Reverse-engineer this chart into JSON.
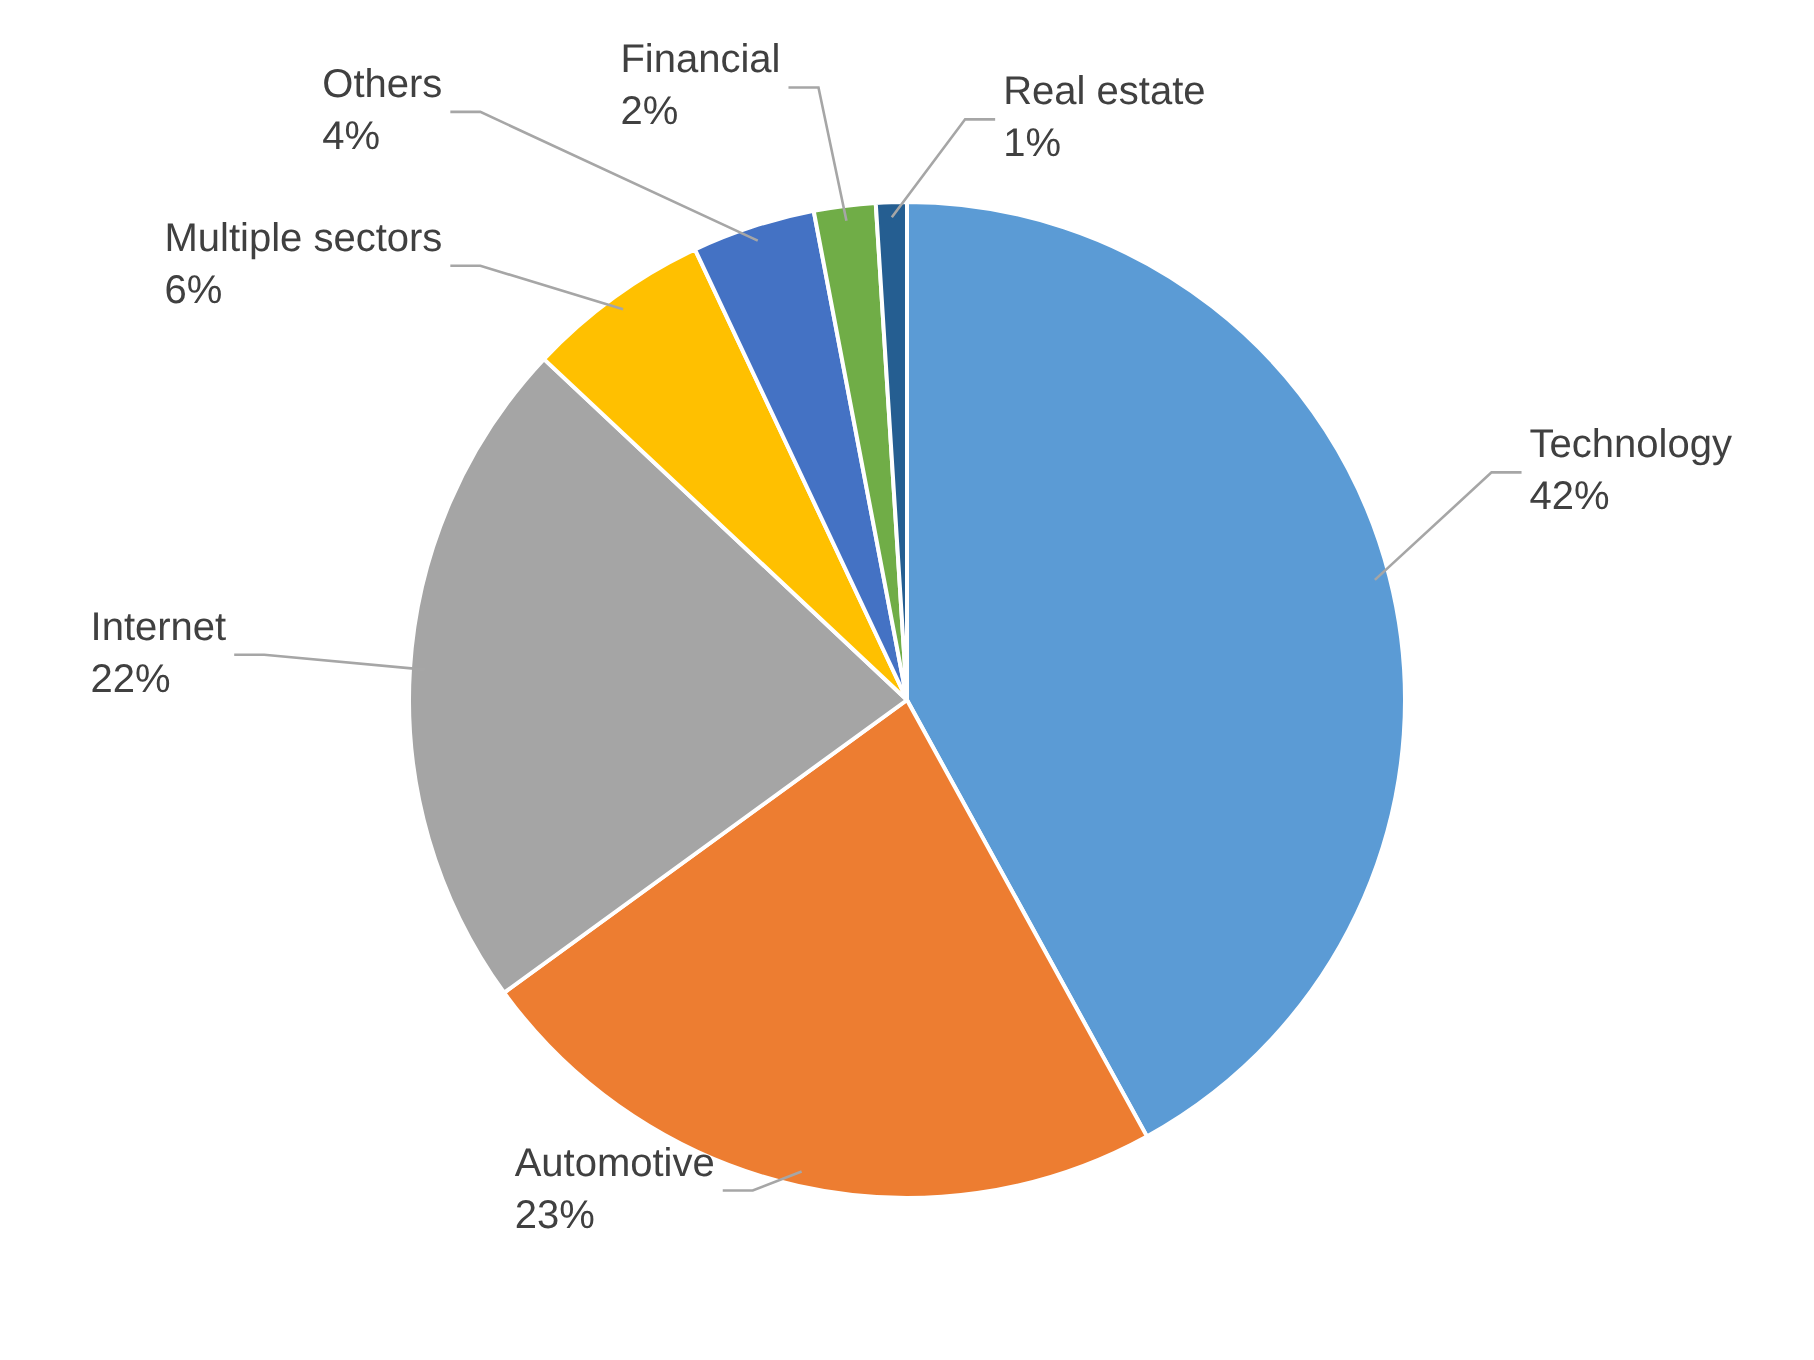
{
  "chart_data": {
    "type": "pie",
    "categories": [
      "Technology",
      "Automotive",
      "Internet",
      "Multiple sectors",
      "Others",
      "Financial",
      "Real estate"
    ],
    "values": [
      42,
      23,
      22,
      6,
      4,
      2,
      1
    ],
    "value_labels": [
      "42%",
      "23%",
      "22%",
      "6%",
      "4%",
      "2%",
      "1%"
    ],
    "colors": [
      "#5b9bd5",
      "#ed7d31",
      "#a5a5a5",
      "#ffc000",
      "#4472c4",
      "#70ad47",
      "#255e91"
    ],
    "legend": false
  }
}
